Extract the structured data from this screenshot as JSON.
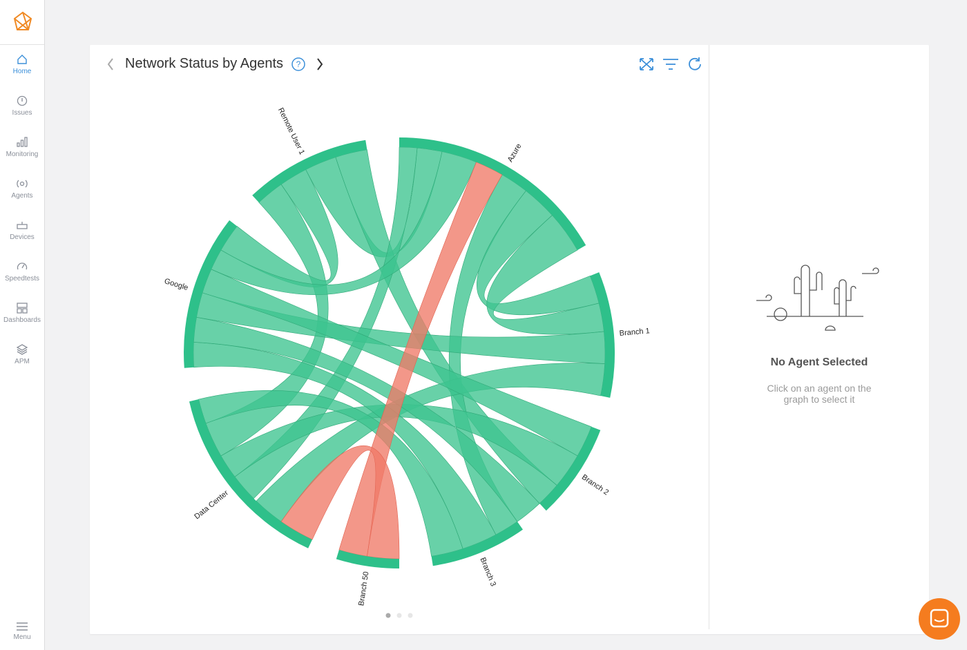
{
  "sidebar": {
    "items": [
      "Home",
      "Issues",
      "Monitoring",
      "Agents",
      "Devices",
      "Speedtests",
      "Dashboards",
      "APM"
    ],
    "menu": "Menu"
  },
  "panel": {
    "title": "Network Status by Agents",
    "agents": [
      "Remote User 1",
      "Azure",
      "Branch 1",
      "Branch 2",
      "Branch 3",
      "Branch 50",
      "Data Center",
      "Google"
    ]
  },
  "details": {
    "title": "No Agent Selected",
    "message_lines": [
      "Click on an agent on the",
      "graph to select it"
    ]
  }
}
